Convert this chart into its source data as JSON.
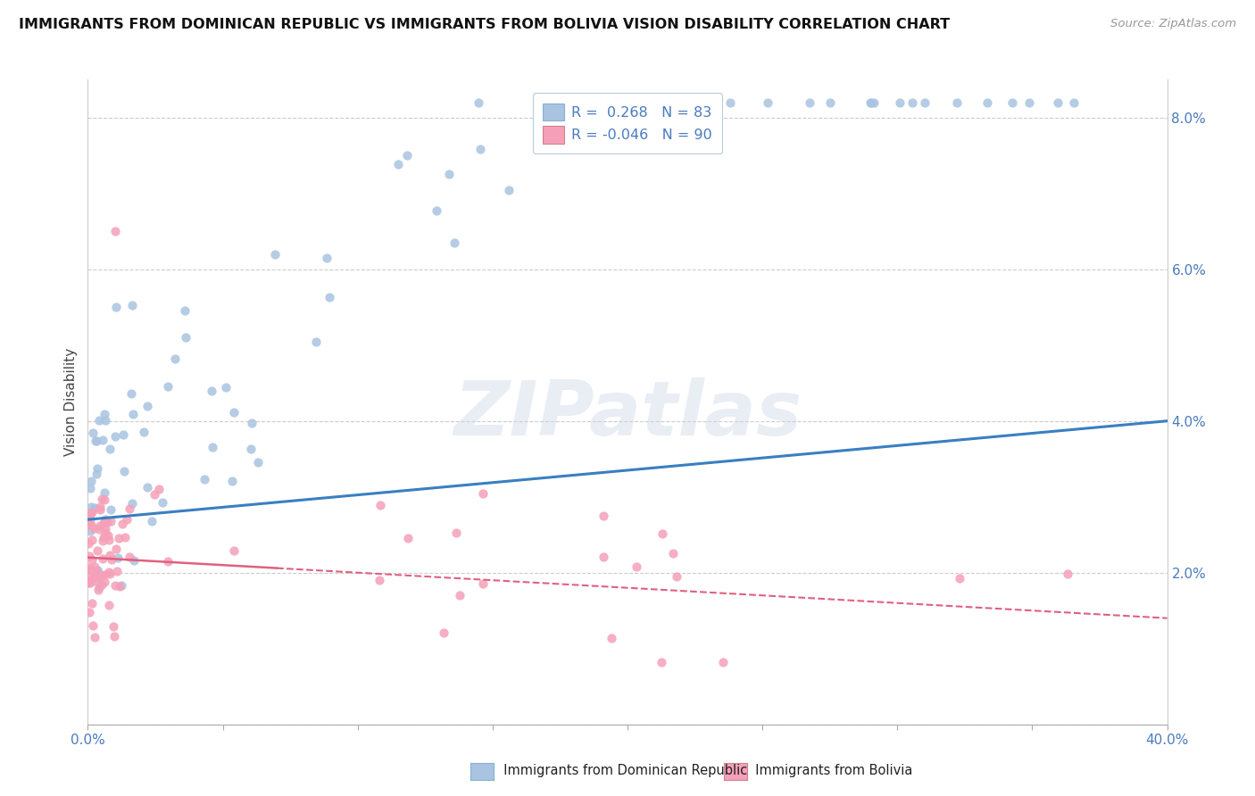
{
  "title": "IMMIGRANTS FROM DOMINICAN REPUBLIC VS IMMIGRANTS FROM BOLIVIA VISION DISABILITY CORRELATION CHART",
  "source": "Source: ZipAtlas.com",
  "ylabel": "Vision Disability",
  "xlim": [
    0.0,
    0.4
  ],
  "ylim": [
    0.0,
    0.085
  ],
  "yticks": [
    0.0,
    0.02,
    0.04,
    0.06,
    0.08
  ],
  "ytick_labels": [
    "",
    "2.0%",
    "4.0%",
    "6.0%",
    "8.0%"
  ],
  "legend_r1": "R =  0.268   N = 83",
  "legend_r2": "R = -0.046   N = 90",
  "legend_label1": "Immigrants from Dominican Republic",
  "legend_label2": "Immigrants from Bolivia",
  "scatter_color1": "#a8c4e0",
  "scatter_color2": "#f5a0b8",
  "line_color1": "#3a7fc1",
  "line_color2": "#e06080",
  "watermark": "ZIPatlas",
  "title_fontsize": 11.5,
  "source_fontsize": 9.5,
  "tick_fontsize": 11,
  "ylabel_fontsize": 11,
  "legend_fontsize": 11.5,
  "dr_line_start": 0.027,
  "dr_line_end": 0.04,
  "bo_line_start": 0.022,
  "bo_line_end": 0.014
}
